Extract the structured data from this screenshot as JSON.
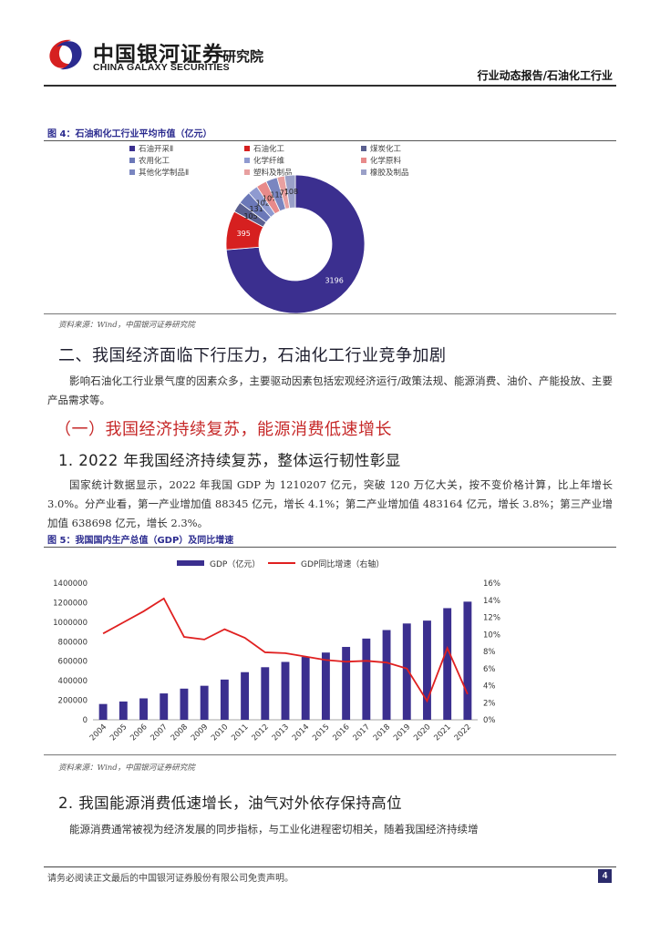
{
  "header": {
    "logo_cn": "中国银河证券",
    "logo_en": "CHINA GALAXY SECURITIES",
    "institute": "研究院",
    "report_type": "行业动态报告/石油化工行业"
  },
  "figure4": {
    "title": "图 4：石油和化工行业平均市值（亿元）",
    "source": "资料来源：Wind，中国银河证券研究院",
    "legend": [
      {
        "label": "石油开采Ⅱ",
        "color": "#3b2f8f"
      },
      {
        "label": "石油化工",
        "color": "#d62020"
      },
      {
        "label": "煤炭化工",
        "color": "#5a5f8f"
      },
      {
        "label": "农用化工",
        "color": "#6b78b8"
      },
      {
        "label": "化学纤维",
        "color": "#8f9ad0"
      },
      {
        "label": "化学原料",
        "color": "#e88a8a"
      },
      {
        "label": "其他化学制品Ⅱ",
        "color": "#7a86c0"
      },
      {
        "label": "塑料及制品",
        "color": "#e8a0a0"
      },
      {
        "label": "橡胶及制品",
        "color": "#9aa0c8"
      }
    ]
  },
  "chart_data": [
    {
      "type": "pie",
      "title": "石油和化工行业平均市值（亿元）",
      "donut": true,
      "slices": [
        {
          "label": "石油开采Ⅱ",
          "value": 3196
        },
        {
          "label": "石油化工",
          "value": 395
        },
        {
          "label": "煤炭化工",
          "value": 105
        },
        {
          "label": "农用化工",
          "value": 131
        },
        {
          "label": "化学纤维",
          "value": 102
        },
        {
          "label": "化学原料",
          "value": 107
        },
        {
          "label": "其他化学制品Ⅱ",
          "value": 115
        },
        {
          "label": "塑料及制品",
          "value": 77
        },
        {
          "label": "橡胶及制品",
          "value": 108
        }
      ]
    },
    {
      "type": "bar",
      "title": "我国国内生产总值（GDP）及同比增速",
      "categories": [
        "2004",
        "2005",
        "2006",
        "2007",
        "2008",
        "2009",
        "2010",
        "2011",
        "2012",
        "2013",
        "2014",
        "2015",
        "2016",
        "2017",
        "2018",
        "2019",
        "2020",
        "2021",
        "2022"
      ],
      "series": [
        {
          "name": "GDP（亿元）",
          "type": "bar",
          "axis": "left",
          "color": "#3b2f8f",
          "values": [
            161840,
            187319,
            219439,
            270092,
            319245,
            348518,
            412119,
            487940,
            538580,
            592963,
            643563,
            688858,
            746395,
            832036,
            919281,
            986515,
            1015986,
            1143670,
            1210207
          ]
        },
        {
          "name": "GDP同比增速（右轴）",
          "type": "line",
          "axis": "right",
          "color": "#e02020",
          "values": [
            10.1,
            11.4,
            12.7,
            14.2,
            9.7,
            9.4,
            10.6,
            9.6,
            7.9,
            7.8,
            7.4,
            7.0,
            6.8,
            6.9,
            6.7,
            6.0,
            2.2,
            8.4,
            3.0
          ]
        }
      ],
      "y_left": {
        "min": 0,
        "max": 1400000,
        "ticks": [
          "0",
          "200000",
          "400000",
          "600000",
          "800000",
          "1000000",
          "1200000",
          "1400000"
        ]
      },
      "y_right": {
        "min": 0,
        "max": 16,
        "ticks": [
          "0%",
          "2%",
          "4%",
          "6%",
          "8%",
          "10%",
          "12%",
          "14%",
          "16%"
        ]
      },
      "legend_position": "top"
    }
  ],
  "section2": {
    "heading": "二、我国经济面临下行压力，石油化工行业竞争加剧",
    "para": "影响石油化工行业景气度的因素众多，主要驱动因素包括宏观经济运行/政策法规、能源消费、油价、产能投放、主要产品需求等。",
    "sub_heading": "（一）我国经济持续复苏，能源消费低速增长",
    "h3_1": "1. 2022 年我国经济持续复苏，整体运行韧性彰显",
    "para2": "国家统计数据显示，2022 年我国 GDP 为 1210207 亿元，突破 120 万亿大关，按不变价格计算，比上年增长 3.0%。分产业看，第一产业增加值 88345 亿元，增长 4.1%；第二产业增加值 483164 亿元，增长 3.8%；第三产业增加值 638698 亿元，增长 2.3%。"
  },
  "figure5": {
    "title": "图 5：我国国内生产总值（GDP）及同比增速",
    "legend_bar": "GDP（亿元）",
    "legend_line": "GDP同比增速（右轴）",
    "source": "资料来源：Wind，中国银河证券研究院"
  },
  "section3": {
    "h3_2": "2. 我国能源消费低速增长，油气对外依存保持高位",
    "para3": "能源消费通常被视为经济发展的同步指标，与工业化进程密切相关，随着我国经济持续增"
  },
  "footer": {
    "disclaimer": "请务必阅读正文最后的中国银河证券股份有限公司免责声明。",
    "page": "4"
  }
}
